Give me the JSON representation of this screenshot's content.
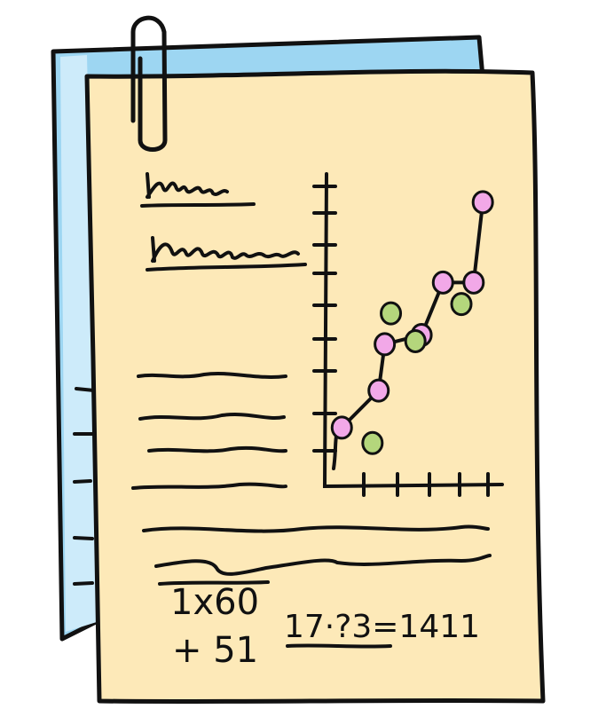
{
  "colors": {
    "paper_front": "#FDE9B8",
    "paper_back": "#9DD6F2",
    "paper_back_highlight": "#CDEBFA",
    "ink": "#111111",
    "pink_dot": "#F2A8E8",
    "green_dot": "#B4D67C"
  },
  "icons": {
    "clip": "paperclip-icon"
  },
  "math": {
    "line1": "1x60",
    "line2": "+ 51",
    "equation": "17·?3=1411"
  },
  "chart_data": {
    "type": "scatter",
    "series": [
      {
        "color": "#F2A8E8",
        "connected": true,
        "x": [
          0.5,
          1.7,
          1.9,
          3.1,
          3.8,
          4.8,
          5.1
        ],
        "y": [
          1.9,
          3.1,
          4.6,
          4.9,
          6.6,
          6.6,
          9.2
        ]
      },
      {
        "color": "#B4D67C",
        "connected": false,
        "x": [
          1.5,
          2.1,
          2.9,
          4.4
        ],
        "y": [
          1.4,
          5.6,
          4.7,
          5.9
        ]
      }
    ],
    "xlim": [
      0,
      5.5
    ],
    "ylim": [
      0,
      10
    ],
    "grid": false
  }
}
